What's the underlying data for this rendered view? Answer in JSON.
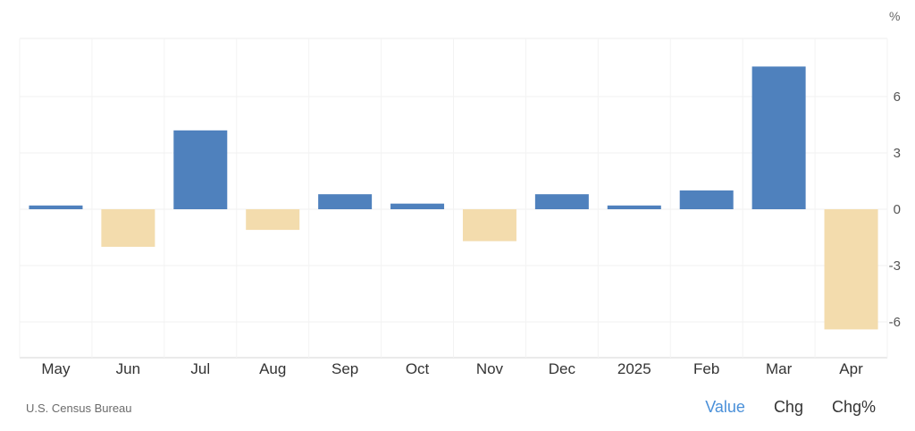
{
  "chart_data": {
    "type": "bar",
    "unit_label": "%",
    "categories": [
      "May",
      "Jun",
      "Jul",
      "Aug",
      "Sep",
      "Oct",
      "Nov",
      "Dec",
      "2025",
      "Feb",
      "Mar",
      "Apr"
    ],
    "values": [
      0.2,
      -2.0,
      4.2,
      -1.1,
      0.8,
      0.3,
      -1.7,
      0.8,
      0.2,
      1.0,
      7.6,
      -6.4
    ],
    "y_ticks": [
      6,
      3,
      0,
      -3,
      -6
    ],
    "ylim": [
      -8,
      9
    ],
    "grid": true,
    "colors": {
      "positive": "#4f81bd",
      "negative": "#f3dcad"
    }
  },
  "footer": {
    "source": "U.S. Census Bureau",
    "tabs": [
      {
        "label": "Value",
        "active": true
      },
      {
        "label": "Chg",
        "active": false
      },
      {
        "label": "Chg%",
        "active": false
      }
    ]
  }
}
